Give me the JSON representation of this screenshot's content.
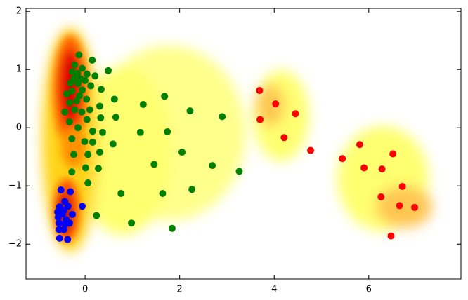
{
  "chart_data": {
    "type": "scatter",
    "xlim": [
      -1.25,
      7.95
    ],
    "ylim": [
      -2.6,
      2.05
    ],
    "xticks": [
      0,
      2,
      4,
      6
    ],
    "yticks": [
      {
        "value": -2,
        "label": "−2"
      },
      {
        "value": -1,
        "label": "−1"
      },
      0,
      1,
      2
    ],
    "series": [
      {
        "color": "#0000ff",
        "x": [
          -0.51,
          -0.31,
          -0.43,
          -0.54,
          -0.45,
          -0.36,
          -0.27,
          -0.48,
          -0.57,
          -0.4,
          -0.55,
          -0.33,
          -0.45,
          -0.55,
          -0.54,
          -0.37,
          -0.06,
          -0.58,
          -0.42
        ],
        "values": [
          -1.07,
          -1.1,
          -1.27,
          -1.36,
          -1.42,
          -1.35,
          -1.49,
          -1.48,
          -1.54,
          -1.58,
          -1.64,
          -1.64,
          -1.75,
          -1.75,
          -1.9,
          -1.92,
          -1.35,
          -1.45,
          -1.66
        ]
      },
      {
        "color": "#008000",
        "x": [
          -0.13,
          -0.22,
          0.15,
          -0.06,
          0.49,
          -0.27,
          -0.16,
          0.04,
          0.21,
          -0.24,
          -0.09,
          0.0,
          -0.31,
          -0.15,
          0.12,
          0.34,
          -0.28,
          -0.06,
          -0.39,
          -0.12,
          0.62,
          0.03,
          -0.18,
          -0.33,
          0.31,
          1.23,
          1.68,
          -0.22,
          0.1,
          -0.07,
          -0.43,
          0.33,
          0.65,
          -0.33,
          0.04,
          2.22,
          2.9,
          -0.15,
          0.16,
          0.37,
          1.17,
          1.74,
          -0.28,
          0.16,
          -0.01,
          0.59,
          -0.24,
          0.31,
          0.06,
          2.05,
          1.46,
          -0.28,
          0.01,
          0.28,
          2.69,
          3.26,
          0.06,
          0.76,
          1.64,
          2.26,
          0.24,
          0.98,
          1.84
        ],
        "values": [
          1.25,
          1.08,
          1.16,
          1.02,
          0.98,
          0.96,
          0.93,
          0.92,
          0.89,
          0.84,
          0.84,
          0.81,
          0.77,
          0.76,
          0.72,
          0.66,
          0.63,
          0.65,
          0.58,
          0.55,
          0.49,
          0.49,
          0.46,
          0.43,
          0.37,
          0.4,
          0.54,
          0.31,
          0.31,
          0.27,
          0.27,
          0.17,
          0.18,
          0.1,
          0.14,
          0.29,
          0.19,
          0.0,
          -0.06,
          -0.08,
          -0.08,
          -0.07,
          -0.19,
          -0.25,
          -0.24,
          -0.28,
          -0.46,
          -0.42,
          -0.46,
          -0.42,
          -0.63,
          -0.76,
          -0.69,
          -0.7,
          -0.65,
          -0.75,
          -0.95,
          -1.13,
          -1.13,
          -1.06,
          -1.51,
          -1.64,
          -1.73
        ]
      },
      {
        "color": "#ff0000",
        "x": [
          3.69,
          4.03,
          4.45,
          3.7,
          4.21,
          4.77,
          5.44,
          5.81,
          5.9,
          6.51,
          6.28,
          6.71,
          6.26,
          6.65,
          6.97,
          6.47
        ],
        "values": [
          0.64,
          0.41,
          0.24,
          0.14,
          -0.17,
          -0.39,
          -0.53,
          -0.29,
          -0.69,
          -0.45,
          -0.71,
          -1.01,
          -1.19,
          -1.34,
          -1.37,
          -1.86
        ]
      }
    ]
  }
}
